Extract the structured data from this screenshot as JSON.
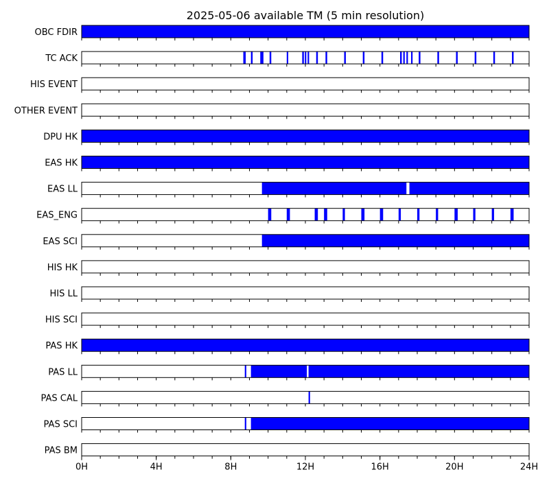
{
  "chart_data": {
    "type": "timeline",
    "title": "2025-05-06 available TM (5 min resolution)",
    "x_unit": "hours",
    "xlim": [
      0,
      24
    ],
    "x_tick_values": [
      0,
      4,
      8,
      12,
      16,
      20,
      24
    ],
    "x_tick_labels": [
      "0H",
      "4H",
      "8H",
      "12H",
      "16H",
      "20H",
      "24H"
    ],
    "minor_tick_step_hours": 1,
    "grid": false,
    "fill_color": "#0000ff",
    "background_color": "#ffffff",
    "rows": [
      {
        "label": "OBC FDIR",
        "intervals": [
          [
            0,
            24
          ]
        ]
      },
      {
        "label": "TC ACK",
        "intervals": [
          [
            8.67,
            8.8
          ],
          [
            9.08,
            9.17
          ],
          [
            9.58,
            9.75
          ],
          [
            10.08,
            10.17
          ],
          [
            11.0,
            11.08
          ],
          [
            11.83,
            11.92
          ],
          [
            11.97,
            12.05
          ],
          [
            12.12,
            12.2
          ],
          [
            12.58,
            12.67
          ],
          [
            13.08,
            13.17
          ],
          [
            14.08,
            14.17
          ],
          [
            15.08,
            15.17
          ],
          [
            16.08,
            16.17
          ],
          [
            17.08,
            17.17
          ],
          [
            17.25,
            17.33
          ],
          [
            17.42,
            17.5
          ],
          [
            17.67,
            17.75
          ],
          [
            18.08,
            18.17
          ],
          [
            19.08,
            19.17
          ],
          [
            20.08,
            20.17
          ],
          [
            21.08,
            21.17
          ],
          [
            22.08,
            22.17
          ],
          [
            23.08,
            23.17
          ]
        ]
      },
      {
        "label": "HIS EVENT",
        "intervals": []
      },
      {
        "label": "OTHER EVENT",
        "intervals": []
      },
      {
        "label": "DPU HK",
        "intervals": [
          [
            0,
            24
          ]
        ]
      },
      {
        "label": "EAS HK",
        "intervals": [
          [
            0,
            24
          ]
        ]
      },
      {
        "label": "EAS LL",
        "intervals": [
          [
            9.67,
            17.42
          ],
          [
            17.58,
            24
          ]
        ]
      },
      {
        "label": "EAS_ENG",
        "intervals": [
          [
            10.0,
            10.17
          ],
          [
            11.0,
            11.17
          ],
          [
            12.5,
            12.67
          ],
          [
            13.0,
            13.17
          ],
          [
            14.0,
            14.12
          ],
          [
            15.0,
            15.17
          ],
          [
            16.0,
            16.17
          ],
          [
            17.0,
            17.12
          ],
          [
            18.0,
            18.12
          ],
          [
            19.0,
            19.12
          ],
          [
            20.0,
            20.17
          ],
          [
            21.0,
            21.12
          ],
          [
            22.0,
            22.12
          ],
          [
            23.0,
            23.17
          ]
        ]
      },
      {
        "label": "EAS SCI",
        "intervals": [
          [
            9.67,
            24
          ]
        ]
      },
      {
        "label": "HIS HK",
        "intervals": []
      },
      {
        "label": "HIS LL",
        "intervals": []
      },
      {
        "label": "HIS SCI",
        "intervals": []
      },
      {
        "label": "PAS HK",
        "intervals": [
          [
            0,
            24
          ]
        ]
      },
      {
        "label": "PAS LL",
        "intervals": [
          [
            8.75,
            8.83
          ],
          [
            9.08,
            12.08
          ],
          [
            12.17,
            24
          ]
        ]
      },
      {
        "label": "PAS CAL",
        "intervals": [
          [
            12.17,
            12.25
          ]
        ]
      },
      {
        "label": "PAS SCI",
        "intervals": [
          [
            8.75,
            8.83
          ],
          [
            9.08,
            24
          ]
        ]
      },
      {
        "label": "PAS BM",
        "intervals": []
      }
    ]
  }
}
